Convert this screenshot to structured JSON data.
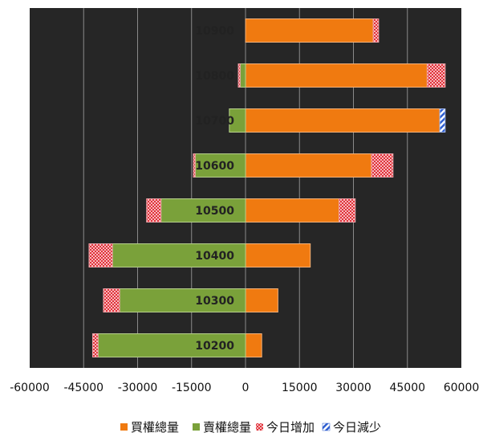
{
  "chart_data": {
    "type": "bar",
    "orientation": "horizontal",
    "stacked": true,
    "title": "",
    "xlabel": "",
    "ylabel": "",
    "xlim": [
      -60000,
      60000
    ],
    "x_ticks": [
      -60000,
      -45000,
      -30000,
      -15000,
      0,
      15000,
      30000,
      45000,
      60000
    ],
    "x_tick_labels": [
      "-60000",
      "-45000",
      "-30000",
      "-15000",
      "0",
      "15000",
      "30000",
      "45000",
      "60000"
    ],
    "grid": "vertical",
    "legend_position": "bottom",
    "background_color": "#262626",
    "categories": [
      "10200",
      "10300",
      "10400",
      "10500",
      "10600",
      "10700",
      "10800",
      "10900"
    ],
    "series": [
      {
        "name": "買權總量",
        "color": "#f07a10",
        "pattern": "solid",
        "side": "positive",
        "values": [
          4500,
          9000,
          18000,
          26000,
          35000,
          54000,
          50500,
          35500
        ]
      },
      {
        "name": "賣權總量",
        "color": "#7aa13a",
        "pattern": "solid",
        "side": "negative",
        "values": [
          41000,
          35000,
          37000,
          23500,
          14000,
          4500,
          1500,
          0
        ]
      },
      {
        "name": "今日增加",
        "color": "#e0313a",
        "pattern": "checker",
        "call_values": [
          0,
          0,
          0,
          4500,
          6000,
          0,
          5000,
          1500
        ],
        "put_values": [
          1500,
          4500,
          6500,
          4000,
          500,
          0,
          500,
          0
        ]
      },
      {
        "name": "今日減少",
        "color": "#2f5fd0",
        "pattern": "stripe",
        "call_values": [
          0,
          0,
          0,
          0,
          0,
          1500,
          0,
          0
        ],
        "put_values": [
          0,
          0,
          0,
          0,
          0,
          0,
          0,
          0
        ]
      }
    ]
  }
}
